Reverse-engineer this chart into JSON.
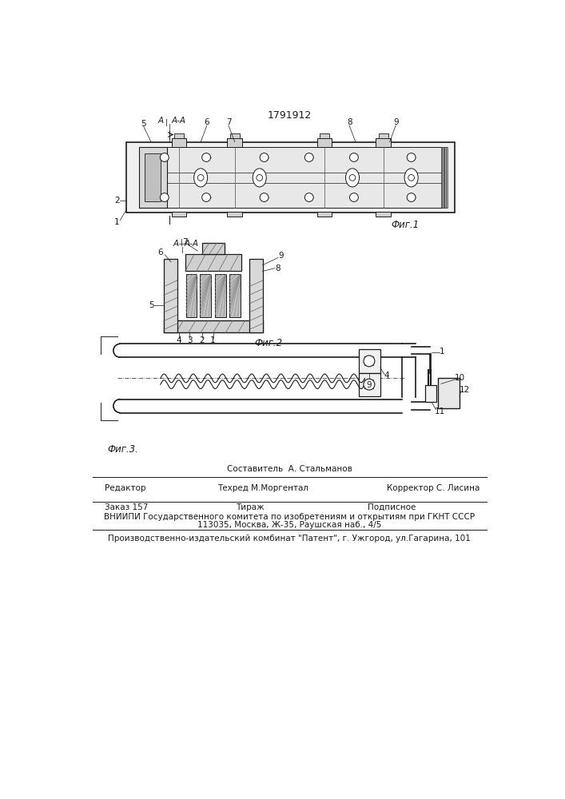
{
  "title": "1791912",
  "background_color": "#ffffff",
  "fig1_label": "Фиг.1",
  "fig2_label": "Фиг.2",
  "fig3_label": "Фиг.3.",
  "footer_line1": "Составитель  А. Стальманов",
  "footer_editor": "Редактор",
  "footer_techred": "Техред М.Моргентал",
  "footer_corrector": "Корректор С. Лисина",
  "footer_order": "Заказ 157",
  "footer_tirazh": "Тираж",
  "footer_podpisnoe": "Подписное",
  "footer_vniipі": "ВНИИПИ Государственного комитета по изобретениям и открытиям при ГКНТ СССР",
  "footer_address": "113035, Москва, Ж-35, Раушская наб., 4/5",
  "footer_kombinat": "Производственно-издательский комбинат \"Патент\", г. Ужгород, ул.Гагарина, 101",
  "line_color": "#1a1a1a"
}
